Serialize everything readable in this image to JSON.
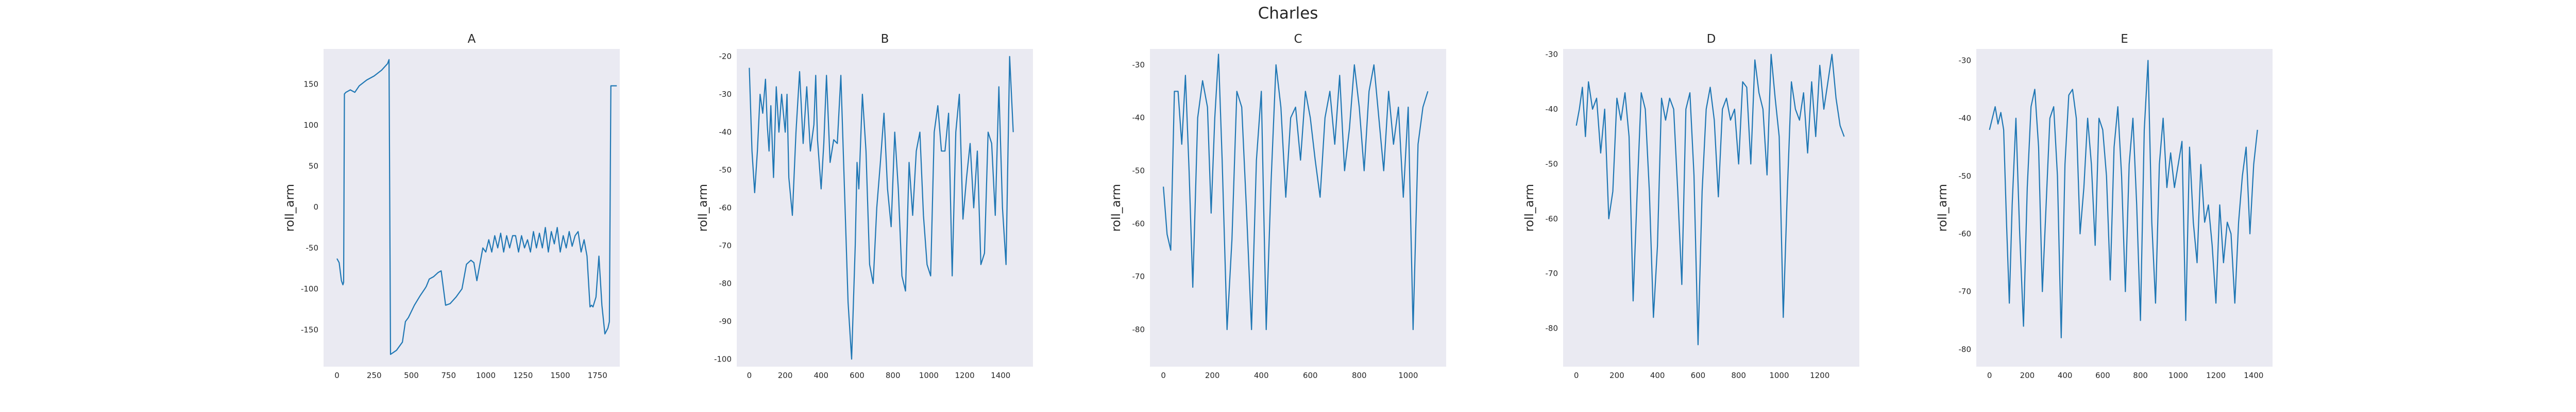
{
  "figure": {
    "title": "Charles"
  },
  "chart_data": [
    {
      "type": "line",
      "title": "A",
      "xlabel": "",
      "ylabel": "roll_arm",
      "x_ticks": [
        "0",
        "250",
        "500",
        "750",
        "1000",
        "1250",
        "1500",
        "1750"
      ],
      "y_ticks": [
        "-150",
        "-100",
        "-50",
        "0",
        "50",
        "100",
        "150"
      ],
      "xlim": [
        -90,
        1900
      ],
      "ylim": [
        -195,
        193
      ],
      "grid": false,
      "color": "#1f77b4",
      "x": [
        0,
        15,
        30,
        40,
        45,
        50,
        60,
        90,
        120,
        150,
        200,
        250,
        300,
        340,
        350,
        360,
        400,
        440,
        460,
        480,
        520,
        560,
        590,
        600,
        620,
        650,
        680,
        700,
        730,
        760,
        800,
        840,
        870,
        900,
        920,
        940,
        960,
        980,
        1000,
        1020,
        1040,
        1060,
        1080,
        1100,
        1120,
        1140,
        1160,
        1180,
        1200,
        1220,
        1240,
        1260,
        1280,
        1300,
        1320,
        1340,
        1360,
        1380,
        1400,
        1420,
        1440,
        1460,
        1480,
        1500,
        1520,
        1540,
        1560,
        1580,
        1600,
        1620,
        1640,
        1660,
        1680,
        1700,
        1710,
        1720,
        1740,
        1760,
        1780,
        1800,
        1820,
        1830,
        1840,
        1860,
        1880
      ],
      "y": [
        -63,
        -68,
        -90,
        -95,
        -92,
        138,
        140,
        143,
        140,
        148,
        155,
        160,
        167,
        175,
        180,
        -180,
        -175,
        -165,
        -140,
        -135,
        -120,
        -108,
        -100,
        -97,
        -88,
        -85,
        -80,
        -78,
        -120,
        -118,
        -110,
        -100,
        -70,
        -65,
        -68,
        -90,
        -70,
        -50,
        -55,
        -40,
        -55,
        -35,
        -50,
        -32,
        -55,
        -35,
        -50,
        -35,
        -35,
        -55,
        -35,
        -50,
        -40,
        -55,
        -30,
        -50,
        -32,
        -50,
        -25,
        -55,
        -30,
        -45,
        -25,
        -55,
        -35,
        -50,
        -30,
        -48,
        -35,
        -30,
        -55,
        -40,
        -60,
        -122,
        -120,
        -122,
        -110,
        -60,
        -120,
        -155,
        -148,
        -140,
        148,
        148,
        148
      ]
    },
    {
      "type": "line",
      "title": "B",
      "xlabel": "",
      "ylabel": "roll_arm",
      "x_ticks": [
        "0",
        "200",
        "400",
        "600",
        "800",
        "1000",
        "1200",
        "1400"
      ],
      "y_ticks": [
        "-100",
        "-90",
        "-80",
        "-70",
        "-60",
        "-50",
        "-40",
        "-30",
        "-20"
      ],
      "xlim": [
        -70,
        1580
      ],
      "ylim": [
        -102,
        -18
      ],
      "grid": false,
      "color": "#1f77b4",
      "x": [
        0,
        15,
        30,
        45,
        60,
        75,
        90,
        100,
        110,
        120,
        135,
        150,
        165,
        180,
        200,
        210,
        220,
        240,
        260,
        280,
        300,
        320,
        340,
        360,
        370,
        380,
        400,
        415,
        430,
        450,
        470,
        490,
        510,
        530,
        550,
        570,
        590,
        600,
        610,
        630,
        650,
        670,
        690,
        710,
        730,
        750,
        770,
        790,
        810,
        830,
        850,
        870,
        890,
        910,
        930,
        950,
        970,
        990,
        1010,
        1030,
        1050,
        1070,
        1090,
        1110,
        1130,
        1150,
        1170,
        1190,
        1210,
        1230,
        1250,
        1270,
        1290,
        1310,
        1330,
        1350,
        1370,
        1390,
        1410,
        1430,
        1450,
        1470
      ],
      "y": [
        -23,
        -45,
        -56,
        -45,
        -30,
        -35,
        -26,
        -38,
        -45,
        -33,
        -52,
        -28,
        -40,
        -30,
        -40,
        -30,
        -52,
        -62,
        -40,
        -24,
        -43,
        -28,
        -45,
        -38,
        -25,
        -42,
        -55,
        -43,
        -25,
        -48,
        -42,
        -43,
        -25,
        -55,
        -85,
        -100,
        -70,
        -48,
        -55,
        -30,
        -45,
        -75,
        -80,
        -60,
        -48,
        -35,
        -55,
        -65,
        -40,
        -55,
        -78,
        -82,
        -48,
        -62,
        -45,
        -40,
        -62,
        -75,
        -78,
        -40,
        -33,
        -45,
        -45,
        -35,
        -78,
        -40,
        -30,
        -63,
        -52,
        -43,
        -60,
        -45,
        -75,
        -72,
        -40,
        -43,
        -62,
        -28,
        -60,
        -75,
        -20,
        -40
      ]
    },
    {
      "type": "line",
      "title": "C",
      "xlabel": "",
      "ylabel": "roll_arm",
      "x_ticks": [
        "0",
        "200",
        "400",
        "600",
        "800",
        "1000"
      ],
      "y_ticks": [
        "-80",
        "-70",
        "-60",
        "-50",
        "-40",
        "-30"
      ],
      "xlim": [
        -55,
        1155
      ],
      "ylim": [
        -87,
        -27
      ],
      "grid": false,
      "color": "#1f77b4",
      "x": [
        0,
        15,
        30,
        45,
        60,
        75,
        90,
        105,
        120,
        140,
        160,
        180,
        195,
        210,
        225,
        240,
        260,
        280,
        300,
        320,
        340,
        360,
        380,
        400,
        420,
        440,
        460,
        480,
        500,
        520,
        540,
        560,
        580,
        600,
        620,
        640,
        660,
        680,
        700,
        720,
        740,
        760,
        780,
        800,
        820,
        840,
        860,
        880,
        900,
        920,
        940,
        960,
        980,
        1000,
        1020,
        1040,
        1060,
        1080
      ],
      "y": [
        -53,
        -62,
        -65,
        -35,
        -35,
        -45,
        -32,
        -50,
        -72,
        -40,
        -33,
        -38,
        -58,
        -40,
        -28,
        -48,
        -80,
        -63,
        -35,
        -38,
        -58,
        -80,
        -48,
        -35,
        -80,
        -52,
        -30,
        -38,
        -55,
        -40,
        -38,
        -48,
        -35,
        -40,
        -48,
        -55,
        -40,
        -35,
        -45,
        -32,
        -50,
        -42,
        -30,
        -38,
        -50,
        -35,
        -30,
        -40,
        -50,
        -35,
        -45,
        -38,
        -55,
        -38,
        -80,
        -45,
        -38,
        -35
      ]
    },
    {
      "type": "line",
      "title": "D",
      "xlabel": "",
      "ylabel": "roll_arm",
      "x_ticks": [
        "0",
        "200",
        "400",
        "600",
        "800",
        "1000",
        "1200"
      ],
      "y_ticks": [
        "-80",
        "-70",
        "-60",
        "-50",
        "-40",
        "-30"
      ],
      "xlim": [
        -65,
        1395
      ],
      "ylim": [
        -87,
        -29
      ],
      "grid": false,
      "color": "#1f77b4",
      "x": [
        0,
        15,
        30,
        45,
        60,
        80,
        100,
        120,
        140,
        160,
        180,
        200,
        220,
        240,
        260,
        280,
        300,
        320,
        340,
        360,
        380,
        400,
        420,
        440,
        460,
        480,
        500,
        520,
        540,
        560,
        580,
        600,
        620,
        640,
        660,
        680,
        700,
        720,
        740,
        760,
        780,
        800,
        820,
        840,
        860,
        880,
        900,
        920,
        940,
        960,
        980,
        1000,
        1020,
        1040,
        1060,
        1080,
        1100,
        1120,
        1140,
        1160,
        1180,
        1200,
        1220,
        1240,
        1260,
        1280,
        1300,
        1320
      ],
      "y": [
        -43,
        -40,
        -36,
        -45,
        -35,
        -40,
        -38,
        -48,
        -40,
        -60,
        -55,
        -38,
        -42,
        -37,
        -45,
        -75,
        -55,
        -37,
        -40,
        -55,
        -78,
        -65,
        -38,
        -42,
        -38,
        -40,
        -55,
        -72,
        -40,
        -37,
        -52,
        -83,
        -55,
        -40,
        -36,
        -42,
        -56,
        -40,
        -38,
        -42,
        -40,
        -50,
        -35,
        -36,
        -50,
        -31,
        -37,
        -40,
        -52,
        -30,
        -38,
        -45,
        -78,
        -55,
        -35,
        -40,
        -42,
        -37,
        -48,
        -35,
        -45,
        -32,
        -40,
        -35,
        -30,
        -38,
        -43,
        -45
      ]
    },
    {
      "type": "line",
      "title": "E",
      "xlabel": "",
      "ylabel": "roll_arm",
      "x_ticks": [
        "0",
        "200",
        "400",
        "600",
        "800",
        "1000",
        "1200",
        "1400"
      ],
      "y_ticks": [
        "-80",
        "-70",
        "-60",
        "-50",
        "-40",
        "-30"
      ],
      "xlim": [
        -70,
        1500
      ],
      "ylim": [
        -83,
        -28
      ],
      "grid": false,
      "color": "#1f77b4",
      "x": [
        0,
        15,
        30,
        45,
        60,
        75,
        90,
        105,
        120,
        140,
        160,
        180,
        200,
        220,
        240,
        260,
        280,
        300,
        320,
        340,
        360,
        380,
        400,
        420,
        440,
        460,
        480,
        500,
        520,
        540,
        560,
        580,
        600,
        620,
        640,
        660,
        680,
        700,
        720,
        740,
        760,
        780,
        800,
        820,
        840,
        860,
        880,
        900,
        920,
        940,
        960,
        980,
        1000,
        1020,
        1040,
        1060,
        1080,
        1100,
        1120,
        1140,
        1160,
        1180,
        1200,
        1220,
        1240,
        1260,
        1280,
        1300,
        1320,
        1340,
        1360,
        1380,
        1400,
        1420
      ],
      "y": [
        -42,
        -40,
        -38,
        -41,
        -39,
        -42,
        -58,
        -72,
        -55,
        -40,
        -60,
        -76,
        -52,
        -38,
        -35,
        -45,
        -70,
        -55,
        -40,
        -38,
        -50,
        -78,
        -48,
        -36,
        -35,
        -40,
        -60,
        -52,
        -40,
        -48,
        -62,
        -40,
        -42,
        -50,
        -68,
        -45,
        -38,
        -50,
        -70,
        -48,
        -40,
        -55,
        -75,
        -42,
        -30,
        -58,
        -72,
        -48,
        -40,
        -52,
        -46,
        -52,
        -48,
        -44,
        -75,
        -45,
        -58,
        -65,
        -48,
        -58,
        -55,
        -62,
        -72,
        -55,
        -65,
        -58,
        -60,
        -72,
        -58,
        -50,
        -45,
        -60,
        -48,
        -42
      ]
    }
  ]
}
